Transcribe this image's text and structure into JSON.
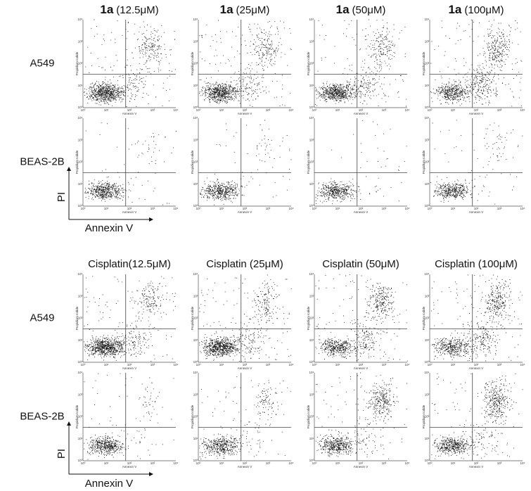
{
  "sections": [
    {
      "columns": [
        {
          "compound": "1a",
          "conc": "(12.5μM)"
        },
        {
          "compound": "1a",
          "conc": "(25μM)"
        },
        {
          "compound": "1a",
          "conc": "(50μM)"
        },
        {
          "compound": "1a",
          "conc": "(100μM)"
        }
      ],
      "rows": [
        "A549",
        "BEAS-2B"
      ]
    },
    {
      "columns": [
        {
          "label": "Cisplatin(12.5μM)"
        },
        {
          "label": "Cisplatin (25μM)"
        },
        {
          "label": "Cisplatin (50μM)"
        },
        {
          "label": "Cisplatin (100μM)"
        }
      ],
      "rows": [
        "A549",
        "BEAS-2B"
      ]
    }
  ],
  "axis_labels": {
    "y": "PI",
    "x": "Annexin V"
  },
  "plot_labels": {
    "x": "Annexin V",
    "y": "Propidium Iodide",
    "ticks": [
      "10⁰",
      "10¹",
      "10²",
      "10³",
      "10⁴"
    ]
  }
}
